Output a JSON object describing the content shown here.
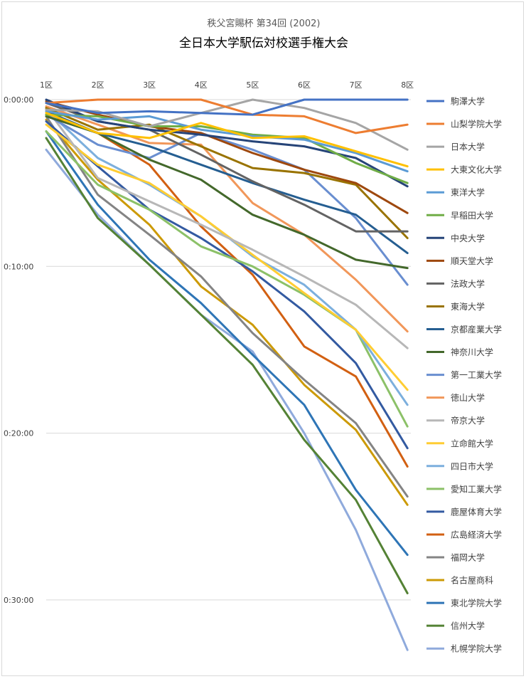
{
  "chart_data": {
    "type": "line",
    "subtitle": "秩父宮賜杯 第34回 (2002)",
    "title": "全日本大学駅伝対校選手権大会",
    "categories": [
      "1区",
      "2区",
      "3区",
      "4区",
      "5区",
      "6区",
      "7区",
      "8区"
    ],
    "y_ticks": [
      "0:00:00",
      "0:10:00",
      "0:20:00",
      "0:30:00"
    ],
    "y_axis_reversed": true,
    "ylim_minutes": [
      0,
      34
    ],
    "y_unit": "minutes behind leader",
    "grid": true,
    "legend_position": "right",
    "series": [
      {
        "name": "駒澤大学",
        "color": "#4472C4",
        "values": [
          0.2,
          0.8,
          0.7,
          0.8,
          0.9,
          0.0,
          0.0,
          0.0
        ]
      },
      {
        "name": "山梨学院大学",
        "color": "#ED7D31",
        "values": [
          0.2,
          0.0,
          0.0,
          0.0,
          0.9,
          1.0,
          2.0,
          1.5
        ]
      },
      {
        "name": "日本大学",
        "color": "#A5A5A5",
        "values": [
          0.6,
          0.7,
          1.6,
          0.8,
          0.0,
          0.5,
          1.4,
          3.0
        ]
      },
      {
        "name": "大東文化大学",
        "color": "#FFC000",
        "values": [
          0.8,
          2.0,
          2.3,
          1.4,
          2.3,
          2.2,
          3.1,
          4.0
        ]
      },
      {
        "name": "東洋大学",
        "color": "#5B9BD5",
        "values": [
          0.7,
          1.2,
          1.0,
          1.8,
          2.2,
          2.4,
          3.2,
          4.3
        ]
      },
      {
        "name": "早稲田大学",
        "color": "#70AD47",
        "values": [
          0.9,
          1.0,
          1.6,
          1.6,
          2.1,
          2.3,
          3.8,
          5.0
        ]
      },
      {
        "name": "中央大学",
        "color": "#264478",
        "values": [
          0.0,
          1.3,
          1.8,
          2.1,
          2.5,
          2.8,
          3.5,
          5.2
        ]
      },
      {
        "name": "順天堂大学",
        "color": "#9E480E",
        "values": [
          0.1,
          0.9,
          1.6,
          2.0,
          3.2,
          4.2,
          5.0,
          6.8
        ]
      },
      {
        "name": "法政大学",
        "color": "#636363",
        "values": [
          0.2,
          1.3,
          1.8,
          3.3,
          4.9,
          6.3,
          7.9,
          7.9
        ]
      },
      {
        "name": "東海大学",
        "color": "#997300",
        "values": [
          0.5,
          1.8,
          1.5,
          2.8,
          4.1,
          4.4,
          5.1,
          8.3
        ]
      },
      {
        "name": "京都産業大学",
        "color": "#255E91",
        "values": [
          0.7,
          2.0,
          2.8,
          3.9,
          5.0,
          6.0,
          6.9,
          9.2
        ]
      },
      {
        "name": "神奈川大学",
        "color": "#43682B",
        "values": [
          1.0,
          2.0,
          3.6,
          4.8,
          6.9,
          8.1,
          9.6,
          10.1
        ]
      },
      {
        "name": "第一工業大学",
        "color": "#698ED0",
        "values": [
          0.9,
          2.7,
          3.5,
          2.0,
          3.0,
          4.2,
          7.1,
          11.1
        ]
      },
      {
        "name": "徳山大学",
        "color": "#F1975A",
        "values": [
          0.4,
          1.5,
          2.6,
          2.7,
          6.2,
          8.1,
          10.8,
          13.9
        ]
      },
      {
        "name": "帝京大学",
        "color": "#B7B7B7",
        "values": [
          0.5,
          4.7,
          6.1,
          7.5,
          9.0,
          10.6,
          12.3,
          14.9
        ]
      },
      {
        "name": "立命館大学",
        "color": "#FFCD33",
        "values": [
          1.5,
          3.9,
          5.0,
          7.0,
          9.3,
          11.6,
          13.8,
          17.4
        ]
      },
      {
        "name": "四日市大学",
        "color": "#7CAFDD",
        "values": [
          0.6,
          3.5,
          5.1,
          7.0,
          9.4,
          11.1,
          13.8,
          18.3
        ]
      },
      {
        "name": "愛知工業大学",
        "color": "#8CC168",
        "values": [
          1.9,
          5.1,
          6.6,
          8.8,
          10.0,
          11.7,
          13.8,
          19.6
        ]
      },
      {
        "name": "鹿屋体育大学",
        "color": "#335AA1",
        "values": [
          1.3,
          4.0,
          6.6,
          8.3,
          10.3,
          12.7,
          15.8,
          20.9
        ]
      },
      {
        "name": "広島経済大学",
        "color": "#D26012",
        "values": [
          0.9,
          2.0,
          3.9,
          7.6,
          10.5,
          14.8,
          16.6,
          22.0
        ]
      },
      {
        "name": "福岡大学",
        "color": "#848484",
        "values": [
          1.0,
          5.7,
          8.1,
          10.6,
          14.0,
          16.8,
          19.4,
          23.8
        ]
      },
      {
        "name": "名古屋商科",
        "color": "#CC9A06",
        "values": [
          1.2,
          4.8,
          7.5,
          11.2,
          13.5,
          17.1,
          19.8,
          24.3
        ]
      },
      {
        "name": "東北学院大学",
        "color": "#2E75B6",
        "values": [
          1.9,
          6.3,
          9.6,
          12.2,
          15.3,
          18.3,
          23.4,
          27.3
        ]
      },
      {
        "name": "信州大学",
        "color": "#548235",
        "values": [
          2.3,
          7.1,
          9.9,
          12.9,
          15.9,
          20.4,
          24.0,
          29.6
        ]
      },
      {
        "name": "札幌学院大学",
        "color": "#8FAADC",
        "values": [
          3.0,
          6.9,
          9.9,
          12.9,
          15.1,
          20.0,
          25.8,
          33.0
        ]
      }
    ]
  }
}
